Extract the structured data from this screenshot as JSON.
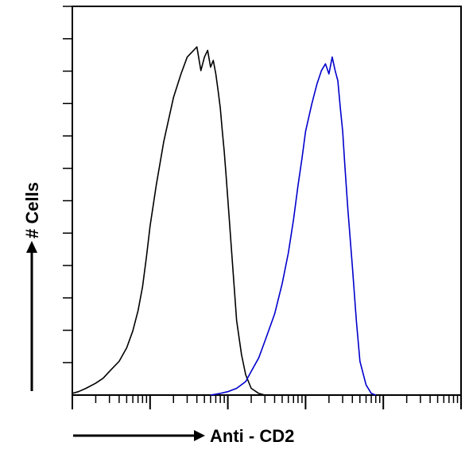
{
  "chart_data": {
    "type": "line",
    "title": "",
    "xlabel": "Anti - CD2",
    "ylabel": "# Cells",
    "x_scale": "log",
    "xlim": [
      1,
      100000
    ],
    "ylim": [
      0,
      1.15
    ],
    "grid": false,
    "legend": "none",
    "series": [
      {
        "color": "#000000",
        "x": [
          1.0,
          1.2,
          1.5,
          2.0,
          2.5,
          3.0,
          4.0,
          5.0,
          6.0,
          7.0,
          8.0,
          9.0,
          10.0,
          12.0,
          15.0,
          20.0,
          25.0,
          30.0,
          40.0,
          45.0,
          50.0,
          55.0,
          60.0,
          65.0,
          70.0,
          75.0,
          80.0,
          85.0,
          90.0,
          95.0,
          100.0,
          110.0,
          120.0,
          130.0,
          150.0,
          170.0,
          200.0,
          250.0,
          300.0,
          400.0,
          500.0
        ],
        "values": [
          0.005,
          0.01,
          0.02,
          0.035,
          0.05,
          0.07,
          0.1,
          0.14,
          0.19,
          0.25,
          0.32,
          0.41,
          0.5,
          0.62,
          0.75,
          0.88,
          0.95,
          1.0,
          1.03,
          0.96,
          1.0,
          1.02,
          0.97,
          0.99,
          0.95,
          0.9,
          0.85,
          0.78,
          0.72,
          0.65,
          0.58,
          0.45,
          0.33,
          0.22,
          0.12,
          0.06,
          0.02,
          0.005,
          0.0,
          0.0,
          0.0
        ]
      },
      {
        "color": "#0000cc",
        "x": [
          60.0,
          80.0,
          100.0,
          130.0,
          170.0,
          200.0,
          250.0,
          300.0,
          400.0,
          500.0,
          600.0,
          700.0,
          800.0,
          900.0,
          1000.0,
          1200.0,
          1400.0,
          1600.0,
          1800.0,
          2000.0,
          2200.0,
          2400.0,
          2600.0,
          2800.0,
          3000.0,
          3200.0,
          3500.0,
          4000.0,
          4500.0,
          5000.0,
          6000.0,
          7000.0,
          8000.0
        ],
        "values": [
          0.0,
          0.005,
          0.01,
          0.02,
          0.04,
          0.07,
          0.11,
          0.16,
          0.24,
          0.33,
          0.42,
          0.52,
          0.62,
          0.7,
          0.78,
          0.86,
          0.92,
          0.96,
          0.98,
          0.95,
          1.0,
          0.96,
          0.93,
          0.85,
          0.78,
          0.68,
          0.55,
          0.38,
          0.22,
          0.1,
          0.03,
          0.005,
          0.0
        ]
      }
    ]
  }
}
